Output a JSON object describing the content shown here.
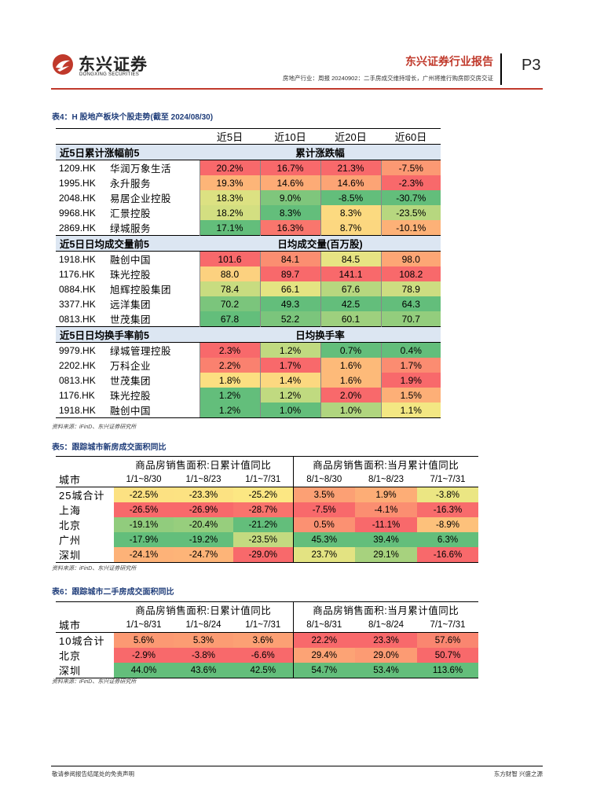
{
  "header": {
    "logo_cn": "东兴证券",
    "logo_en": "DONGXING SECURITIES",
    "title": "东兴证券行业报告",
    "page": "P3",
    "subtitle": "房地产行业：周报 20240902：二手房成交维持增长，广州将推行购房即交房交证"
  },
  "table4": {
    "caption": "表4：H 股地产板块个股走势(截至 2024/08/30)",
    "headers": [
      "近5日",
      "近10日",
      "近20日",
      "近60日"
    ],
    "sections": [
      {
        "left": "近5日累计涨幅前5",
        "right": "累计涨跌幅",
        "rows": [
          {
            "code": "1209.HK",
            "name": "华润万象生活",
            "vals": [
              "20.2%",
              "16.7%",
              "21.3%",
              "-7.5%"
            ]
          },
          {
            "code": "1995.HK",
            "name": "永升服务",
            "vals": [
              "19.3%",
              "14.6%",
              "14.6%",
              "-2.3%"
            ]
          },
          {
            "code": "2048.HK",
            "name": "易居企业控股",
            "vals": [
              "18.3%",
              "9.0%",
              "-8.5%",
              "-30.7%"
            ]
          },
          {
            "code": "9968.HK",
            "name": "汇景控股",
            "vals": [
              "18.2%",
              "8.3%",
              "8.3%",
              "-23.5%"
            ]
          },
          {
            "code": "2869.HK",
            "name": "绿城服务",
            "vals": [
              "17.1%",
              "16.3%",
              "8.7%",
              "-10.1%"
            ]
          }
        ]
      },
      {
        "left": "近5日日均成交量前5",
        "right": "日均成交量(百万股)",
        "rows": [
          {
            "code": "1918.HK",
            "name": "融创中国",
            "vals": [
              "101.6",
              "84.1",
              "84.5",
              "98.0"
            ]
          },
          {
            "code": "1176.HK",
            "name": "珠光控股",
            "vals": [
              "88.0",
              "89.7",
              "141.1",
              "108.2"
            ]
          },
          {
            "code": "0884.HK",
            "name": "旭辉控股集团",
            "vals": [
              "78.4",
              "66.1",
              "67.6",
              "78.9"
            ]
          },
          {
            "code": "3377.HK",
            "name": "远洋集团",
            "vals": [
              "70.2",
              "49.3",
              "42.5",
              "64.3"
            ]
          },
          {
            "code": "0813.HK",
            "name": "世茂集团",
            "vals": [
              "67.8",
              "52.2",
              "60.1",
              "70.7"
            ]
          }
        ]
      },
      {
        "left": "近5日日均换手率前5",
        "right": "日均换手率",
        "rows": [
          {
            "code": "9979.HK",
            "name": "绿城管理控股",
            "vals": [
              "2.3%",
              "1.2%",
              "0.7%",
              "0.4%"
            ]
          },
          {
            "code": "2202.HK",
            "name": "万科企业",
            "vals": [
              "2.2%",
              "1.7%",
              "1.6%",
              "1.7%"
            ]
          },
          {
            "code": "0813.HK",
            "name": "世茂集团",
            "vals": [
              "1.8%",
              "1.4%",
              "1.6%",
              "1.9%"
            ]
          },
          {
            "code": "1176.HK",
            "name": "珠光控股",
            "vals": [
              "1.2%",
              "1.2%",
              "2.0%",
              "1.5%"
            ]
          },
          {
            "code": "1918.HK",
            "name": "融创中国",
            "vals": [
              "1.2%",
              "1.0%",
              "1.0%",
              "1.1%"
            ]
          }
        ]
      }
    ],
    "source": "资料来源：iFinD、东兴证券研究所"
  },
  "table5": {
    "caption": "表5：跟踪城市新房成交面积同比",
    "group1": "商品房销售面积:日累计值同比",
    "group2": "商品房销售面积:当月累计值同比",
    "city_header": "城市",
    "periods": [
      "1/1~8/30",
      "1/1~8/23",
      "1/1~7/31",
      "8/1~8/30",
      "8/1~8/23",
      "7/1~7/31"
    ],
    "rows": [
      {
        "city": "25城合计",
        "vals": [
          "-22.5%",
          "-23.3%",
          "-25.2%",
          "3.5%",
          "1.9%",
          "-3.8%"
        ]
      },
      {
        "city": "上海",
        "vals": [
          "-26.5%",
          "-26.9%",
          "-28.7%",
          "-7.5%",
          "-4.1%",
          "-16.3%"
        ]
      },
      {
        "city": "北京",
        "vals": [
          "-19.1%",
          "-20.4%",
          "-21.2%",
          "0.5%",
          "-11.1%",
          "-8.9%"
        ]
      },
      {
        "city": "广州",
        "vals": [
          "-17.9%",
          "-19.2%",
          "-23.5%",
          "45.3%",
          "39.4%",
          "6.3%"
        ]
      },
      {
        "city": "深圳",
        "vals": [
          "-24.1%",
          "-24.7%",
          "-29.0%",
          "23.7%",
          "29.1%",
          "-16.6%"
        ]
      }
    ],
    "source": "资料来源：iFinD、东兴证券研究所"
  },
  "table6": {
    "caption": "表6：跟踪城市二手房成交面积同比",
    "group1": "商品房销售面积:日累计值同比",
    "group2": "商品房销售面积:当月累计值同比",
    "city_header": "城市",
    "periods": [
      "1/1~8/31",
      "1/1~8/24",
      "1/1~7/31",
      "8/1~8/31",
      "8/1~8/24",
      "7/1~7/31"
    ],
    "rows": [
      {
        "city": "10城合计",
        "vals": [
          "5.6%",
          "5.3%",
          "3.6%",
          "22.2%",
          "23.3%",
          "57.6%"
        ]
      },
      {
        "city": "北京",
        "vals": [
          "-2.9%",
          "-3.8%",
          "-6.6%",
          "29.4%",
          "29.0%",
          "50.7%"
        ]
      },
      {
        "city": "深圳",
        "vals": [
          "44.0%",
          "43.6%",
          "42.5%",
          "54.7%",
          "53.4%",
          "113.6%"
        ]
      }
    ],
    "source": "资料来源：iFinD、东兴证券研究所"
  },
  "footer": {
    "left": "敬请参阅报告结尾处的免责声明",
    "right": "东方财智 兴盛之源"
  },
  "colors": {
    "red": "#f8696b",
    "orange": "#fdab76",
    "yellow": "#fcea84",
    "light_green": "#b6d77f",
    "green": "#63be7b",
    "section_bg": "#dce6f2",
    "accent": "#c0392b"
  }
}
